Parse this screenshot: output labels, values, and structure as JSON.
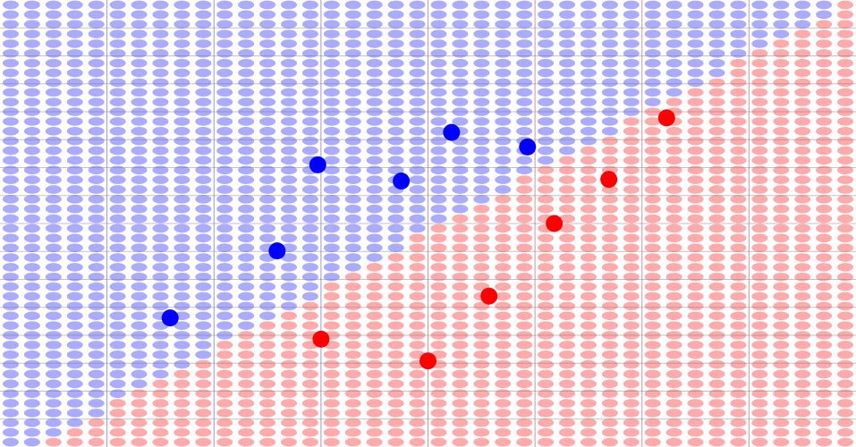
{
  "chart_data": {
    "type": "scatter",
    "title": "",
    "xlabel": "",
    "ylabel": "",
    "xlim": [
      -4,
      4
    ],
    "ylim": [
      -4,
      4
    ],
    "grid": true,
    "grid_step": 1,
    "background": {
      "kind": "decision_regions",
      "boundary": {
        "slope": 1.05,
        "intercept": -0.15
      },
      "class_above": "blue",
      "class_below": "red",
      "dot_columns": 40,
      "dot_rows": 46
    },
    "series": [
      {
        "class": "blue",
        "color": "#0000ff",
        "points": [
          {
            "x": -2.41,
            "y": -1.69
          },
          {
            "x": -1.41,
            "y": -0.49
          },
          {
            "x": -1.03,
            "y": 1.05
          },
          {
            "x": -0.25,
            "y": 0.76
          },
          {
            "x": 0.22,
            "y": 1.63
          },
          {
            "x": 0.93,
            "y": 1.37
          }
        ]
      },
      {
        "class": "red",
        "color": "#ff0000",
        "points": [
          {
            "x": -1.0,
            "y": -2.07
          },
          {
            "x": 0.0,
            "y": -2.46
          },
          {
            "x": 0.57,
            "y": -1.3
          },
          {
            "x": 1.18,
            "y": -0.0
          },
          {
            "x": 1.69,
            "y": 0.79
          },
          {
            "x": 2.23,
            "y": 1.89
          }
        ]
      }
    ]
  },
  "colors": {
    "region_blue": "#9c9cff",
    "region_red": "#ff9c9c",
    "grid_minor": "#7a7a7a",
    "grid_major_blue": "#1a1a8a",
    "grid_major_red": "#8a1a1a"
  }
}
